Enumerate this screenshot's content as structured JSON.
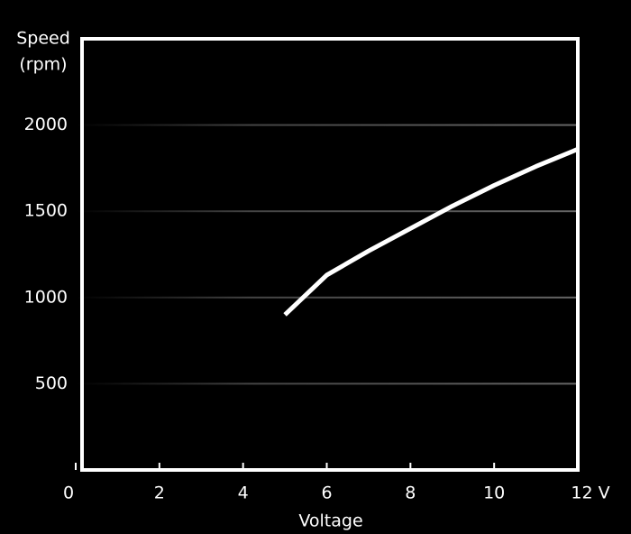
{
  "chart_data": {
    "type": "line",
    "x_label": "Voltage",
    "y_label": [
      "Speed",
      "(rpm)"
    ],
    "x": [
      5,
      6,
      7,
      8,
      9,
      10,
      11,
      12
    ],
    "series": [
      {
        "color": "#ffffff",
        "values": [
          900,
          1130,
          1270,
          1400,
          1530,
          1650,
          1760,
          1860
        ]
      }
    ],
    "xlim": [
      0,
      12
    ],
    "xticks": [
      0,
      2,
      4,
      6,
      8,
      10,
      {
        "value": 12,
        "label": "12 V"
      }
    ],
    "ylim": [
      0,
      2500
    ],
    "yticks": [
      500,
      1000,
      1500,
      2000
    ],
    "grid": true
  }
}
